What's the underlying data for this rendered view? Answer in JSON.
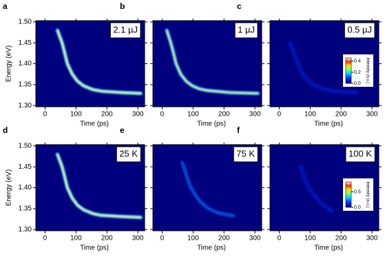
{
  "chart_data": [
    {
      "type": "heatmap",
      "panel": "a",
      "label": "2.1 µJ",
      "xlabel": "Time (ps)",
      "ylabel": "Energy (eV)",
      "xlim": [
        -30,
        322
      ],
      "ylim": [
        1.297,
        1.503
      ],
      "xticks": [
        0,
        100,
        200,
        300
      ],
      "yticks": [
        {
          "value": 1.3,
          "label": "1.30"
        },
        1.35,
        {
          "value": 1.4,
          "label": "1.40"
        },
        1.45,
        {
          "value": 1.5,
          "label": "1.50"
        }
      ]
    },
    {
      "type": "heatmap",
      "panel": "b",
      "label": "1 µJ",
      "xlabel": "Time (ps)",
      "xlim": [
        -30,
        322
      ],
      "ylim": [
        1.297,
        1.503
      ],
      "xticks": [
        0,
        100,
        200,
        300
      ],
      "yticks": [
        1.3,
        1.35,
        1.4,
        1.45,
        1.5
      ]
    },
    {
      "type": "heatmap",
      "panel": "c",
      "label": "0.5 µJ",
      "xlabel": "Time (ps)",
      "xlim": [
        -30,
        322
      ],
      "ylim": [
        1.297,
        1.503
      ],
      "xticks": [
        0,
        100,
        200,
        300
      ],
      "yticks": [
        1.3,
        1.35,
        1.4,
        1.45,
        1.5
      ],
      "colorbar": {
        "label": "Intensity (a.u.)",
        "lim": [
          0,
          0.46
        ],
        "ticks": [
          {
            "value": 0,
            "label": "0.0"
          },
          0.2,
          0.4
        ]
      }
    },
    {
      "type": "heatmap",
      "panel": "d",
      "label": "25 K",
      "xlabel": "Time (ps)",
      "ylabel": "Energy (eV)",
      "xlim": [
        -30,
        322
      ],
      "ylim": [
        1.297,
        1.503
      ],
      "xticks": [
        0,
        100,
        200,
        300
      ],
      "yticks": [
        {
          "value": 1.3,
          "label": "1.30"
        },
        1.35,
        {
          "value": 1.4,
          "label": "1.40"
        },
        1.45,
        {
          "value": 1.5,
          "label": "1.50"
        }
      ]
    },
    {
      "type": "heatmap",
      "panel": "e",
      "label": "75 K",
      "xlabel": "Time (ps)",
      "xlim": [
        -30,
        322
      ],
      "ylim": [
        1.297,
        1.503
      ],
      "xticks": [
        0,
        100,
        200,
        300
      ],
      "yticks": [
        1.3,
        1.35,
        1.4,
        1.45,
        1.5
      ]
    },
    {
      "type": "heatmap",
      "panel": "f",
      "label": "100 K",
      "xlabel": "Time (ps)",
      "xlim": [
        -30,
        322
      ],
      "ylim": [
        1.297,
        1.503
      ],
      "xticks": [
        0,
        100,
        200,
        300
      ],
      "yticks": [
        1.3,
        1.35,
        1.4,
        1.45,
        1.5
      ],
      "colorbar": {
        "label": "Intensity (a.u.)",
        "lim": [
          0,
          0.82
        ],
        "ticks": [
          {
            "value": 0,
            "label": "0.0"
          },
          0.5
        ]
      }
    }
  ]
}
